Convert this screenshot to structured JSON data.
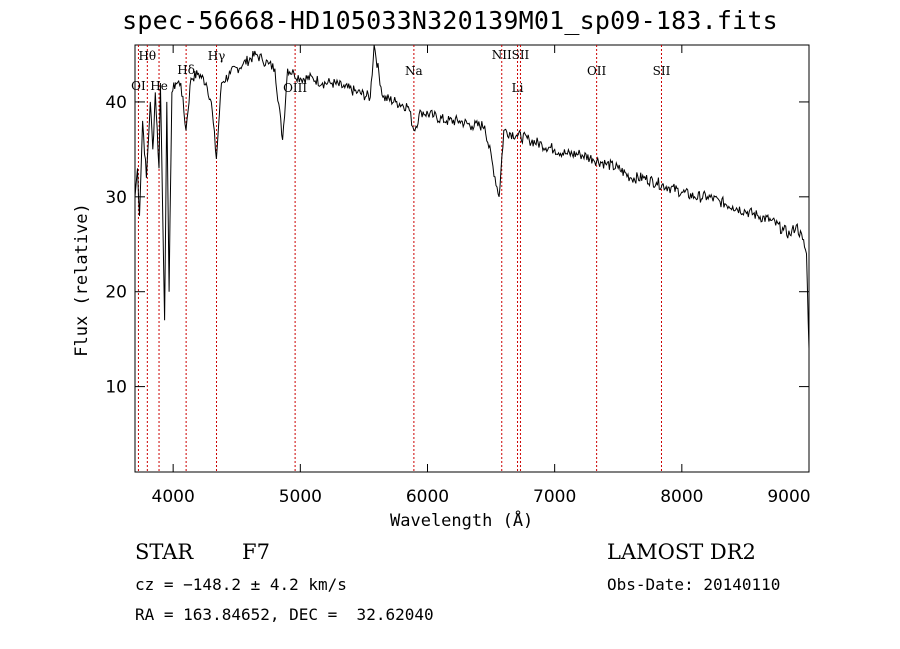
{
  "title": "spec-56668-HD105033N320139M01_sp09-183.fits",
  "footer": {
    "class_label": "STAR",
    "subclass": "F7",
    "survey": "LAMOST DR2",
    "cz_text": "cz = −148.2 ± 4.2 km/s",
    "obs_date_text": "Obs-Date: 20140110",
    "radec_text": "RA = 163.84652, DEC =  32.62040"
  },
  "chart_data": {
    "type": "line",
    "title": "spec-56668-HD105033N320139M01_sp09-183.fits",
    "xlabel": "Wavelength (Å)",
    "ylabel": "Flux (relative)",
    "xlim": [
      3700,
      9000
    ],
    "ylim": [
      1,
      46
    ],
    "x_ticks": [
      4000,
      5000,
      6000,
      7000,
      8000,
      9000
    ],
    "y_ticks": [
      10,
      20,
      30,
      40
    ],
    "grid": false,
    "legend": "none",
    "line_color": "#000000",
    "marker_color": "#cc0000",
    "spectrum": {
      "x": [
        3700,
        3720,
        3735,
        3760,
        3790,
        3820,
        3840,
        3860,
        3889,
        3900,
        3933,
        3950,
        3968,
        3990,
        4020,
        4060,
        4101,
        4140,
        4200,
        4260,
        4300,
        4340,
        4380,
        4450,
        4550,
        4650,
        4700,
        4750,
        4800,
        4861,
        4900,
        4950,
        5000,
        5100,
        5175,
        5250,
        5350,
        5450,
        5550,
        5580,
        5650,
        5750,
        5850,
        5893,
        5950,
        6050,
        6150,
        6250,
        6350,
        6450,
        6563,
        6600,
        6700,
        6800,
        6900,
        7000,
        7100,
        7200,
        7300,
        7400,
        7500,
        7600,
        7700,
        7800,
        7900,
        8000,
        8100,
        8200,
        8300,
        8400,
        8500,
        8600,
        8700,
        8800,
        8850,
        8900,
        8950,
        8980,
        9000
      ],
      "y": [
        30,
        33,
        28,
        38,
        32,
        40,
        35,
        41,
        33,
        42,
        17,
        40,
        20,
        41,
        42,
        42,
        37,
        42.5,
        43,
        42,
        40,
        34,
        42,
        43,
        44,
        45,
        44.5,
        44,
        43.5,
        36,
        43.5,
        43,
        42.5,
        42.5,
        42,
        42,
        41.5,
        41,
        40.5,
        46,
        40.5,
        40,
        39.5,
        37,
        39,
        38.5,
        38,
        38,
        37.5,
        37.5,
        30,
        37,
        36.5,
        36,
        35.5,
        35,
        34.5,
        34.5,
        34,
        33.5,
        33,
        32,
        32,
        31.5,
        31,
        30.5,
        30,
        30,
        29.5,
        29,
        28.5,
        28,
        27.5,
        26.5,
        26,
        27,
        25.5,
        24,
        14
      ]
    },
    "lines": [
      {
        "label": "OI",
        "x": 3727
      },
      {
        "label": "Hθ",
        "x": 3797
      },
      {
        "label": "He",
        "x": 3889
      },
      {
        "label": "Hδ",
        "x": 4102
      },
      {
        "label": "Hγ",
        "x": 4341
      },
      {
        "label": "OIII",
        "x": 4959
      },
      {
        "label": "Na",
        "x": 5893
      },
      {
        "label": "NII",
        "x": 6584
      },
      {
        "label": "Li",
        "x": 6708
      },
      {
        "label": "SII",
        "x": 6731
      },
      {
        "label": "OII",
        "x": 7330
      },
      {
        "label": "SII",
        "x": 7840
      }
    ]
  }
}
